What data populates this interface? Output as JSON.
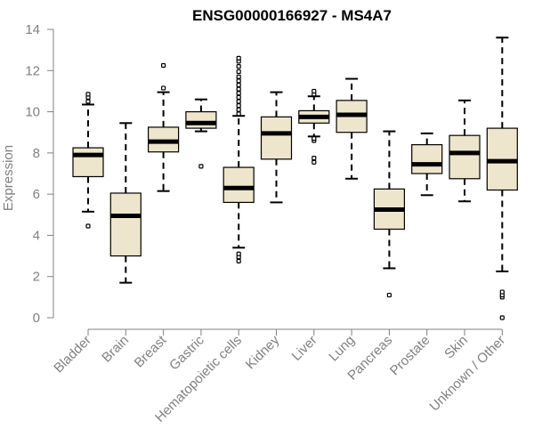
{
  "chart_data": {
    "type": "boxplot",
    "title": "ENSG00000166927 - MS4A7",
    "xlabel": "",
    "ylabel": "Expression",
    "ylim": [
      0,
      14
    ],
    "yticks": [
      0,
      2,
      4,
      6,
      8,
      10,
      12,
      14
    ],
    "grid": false,
    "box_fill": "#ede6cd",
    "median_color": "#000000",
    "axis_color": "#808080",
    "categories": [
      "Bladder",
      "Brain",
      "Breast",
      "Gastric",
      "Hematopoietic cells",
      "Kidney",
      "Liver",
      "Lung",
      "Pancreas",
      "Prostate",
      "Skin",
      "Unknown / Other"
    ],
    "boxes": [
      {
        "name": "Bladder",
        "whisker_low": 5.15,
        "q1": 6.85,
        "median": 7.9,
        "q3": 8.25,
        "whisker_high": 10.35,
        "outliers": [
          4.45,
          10.5,
          10.7,
          10.85
        ]
      },
      {
        "name": "Brain",
        "whisker_low": 1.7,
        "q1": 3.0,
        "median": 4.95,
        "q3": 6.05,
        "whisker_high": 9.45,
        "outliers": []
      },
      {
        "name": "Breast",
        "whisker_low": 6.15,
        "q1": 8.05,
        "median": 8.55,
        "q3": 9.25,
        "whisker_high": 10.95,
        "outliers": [
          11.15,
          12.25
        ]
      },
      {
        "name": "Gastric",
        "whisker_low": 9.05,
        "q1": 9.2,
        "median": 9.45,
        "q3": 10.0,
        "whisker_high": 10.6,
        "outliers": [
          7.35
        ]
      },
      {
        "name": "Hematopoietic cells",
        "whisker_low": 3.4,
        "q1": 5.6,
        "median": 6.3,
        "q3": 7.3,
        "whisker_high": 9.8,
        "outliers": [
          2.75,
          2.95,
          3.1,
          9.9,
          10.1,
          10.3,
          10.5,
          10.7,
          10.9,
          11.1,
          11.3,
          11.5,
          11.7,
          11.95,
          12.2,
          12.45,
          12.6
        ]
      },
      {
        "name": "Kidney",
        "whisker_low": 5.6,
        "q1": 7.7,
        "median": 8.95,
        "q3": 9.75,
        "whisker_high": 10.95,
        "outliers": []
      },
      {
        "name": "Liver",
        "whisker_low": 8.8,
        "q1": 9.45,
        "median": 9.75,
        "q3": 10.05,
        "whisker_high": 10.75,
        "outliers": [
          7.55,
          7.75,
          8.6,
          8.7,
          10.85,
          11.0
        ]
      },
      {
        "name": "Lung",
        "whisker_low": 6.75,
        "q1": 9.0,
        "median": 9.85,
        "q3": 10.55,
        "whisker_high": 11.6,
        "outliers": []
      },
      {
        "name": "Pancreas",
        "whisker_low": 2.4,
        "q1": 4.3,
        "median": 5.25,
        "q3": 6.25,
        "whisker_high": 9.05,
        "outliers": [
          1.1
        ]
      },
      {
        "name": "Prostate",
        "whisker_low": 5.95,
        "q1": 7.0,
        "median": 7.45,
        "q3": 8.4,
        "whisker_high": 8.95,
        "outliers": []
      },
      {
        "name": "Skin",
        "whisker_low": 5.65,
        "q1": 6.75,
        "median": 8.0,
        "q3": 8.85,
        "whisker_high": 10.55,
        "outliers": []
      },
      {
        "name": "Unknown / Other",
        "whisker_low": 2.25,
        "q1": 6.2,
        "median": 7.6,
        "q3": 9.2,
        "whisker_high": 13.6,
        "outliers": [
          0.0,
          1.0,
          1.1,
          1.25
        ]
      }
    ]
  }
}
